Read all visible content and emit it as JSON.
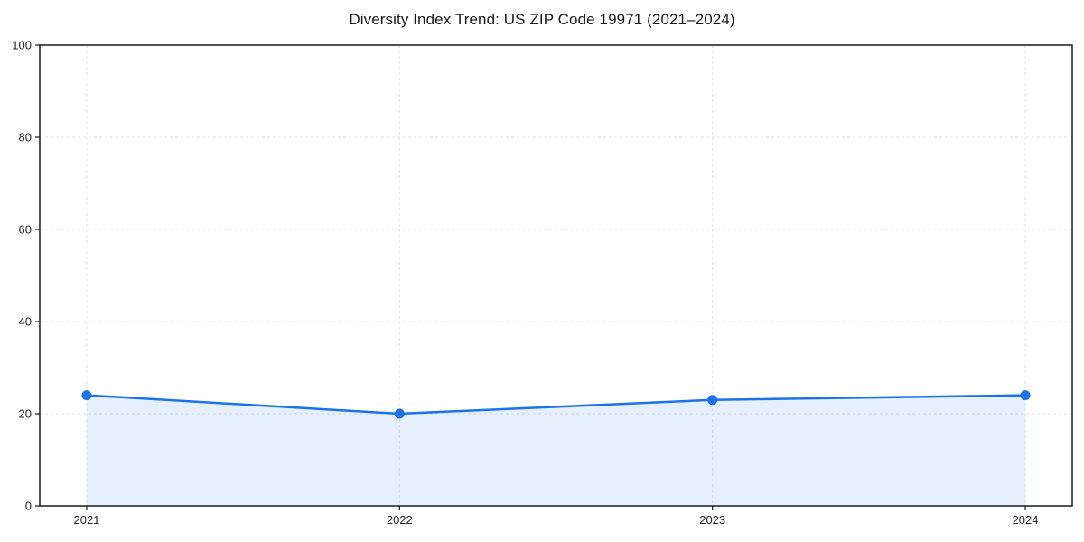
{
  "figure": {
    "background": "#ffffff"
  },
  "chart_data": {
    "type": "area",
    "title": "Diversity Index Trend: US ZIP Code 19971 (2021–2024)",
    "categories": [
      "2021",
      "2022",
      "2023",
      "2024"
    ],
    "x": [
      2021,
      2022,
      2023,
      2024
    ],
    "series": [
      {
        "name": "Diversity Index",
        "values": [
          24,
          20,
          23,
          24
        ]
      }
    ],
    "xlabel": "",
    "ylabel": "",
    "xlim": [
      2020.85,
      2024.15
    ],
    "ylim": [
      0,
      100
    ],
    "yticks": [
      0,
      20,
      40,
      60,
      80,
      100
    ],
    "grid": true,
    "grid_style": "dashed",
    "legend": false,
    "colors": {
      "line": "#1a73e8",
      "marker": "#1a73e8",
      "fill": "rgba(26, 115, 232, 0.11)",
      "grid": "#e3e3e3",
      "spine": "#1a1a1a",
      "tick": "#1a1a1a",
      "tick_label": "#262626",
      "title": "#1a1a1a"
    }
  }
}
